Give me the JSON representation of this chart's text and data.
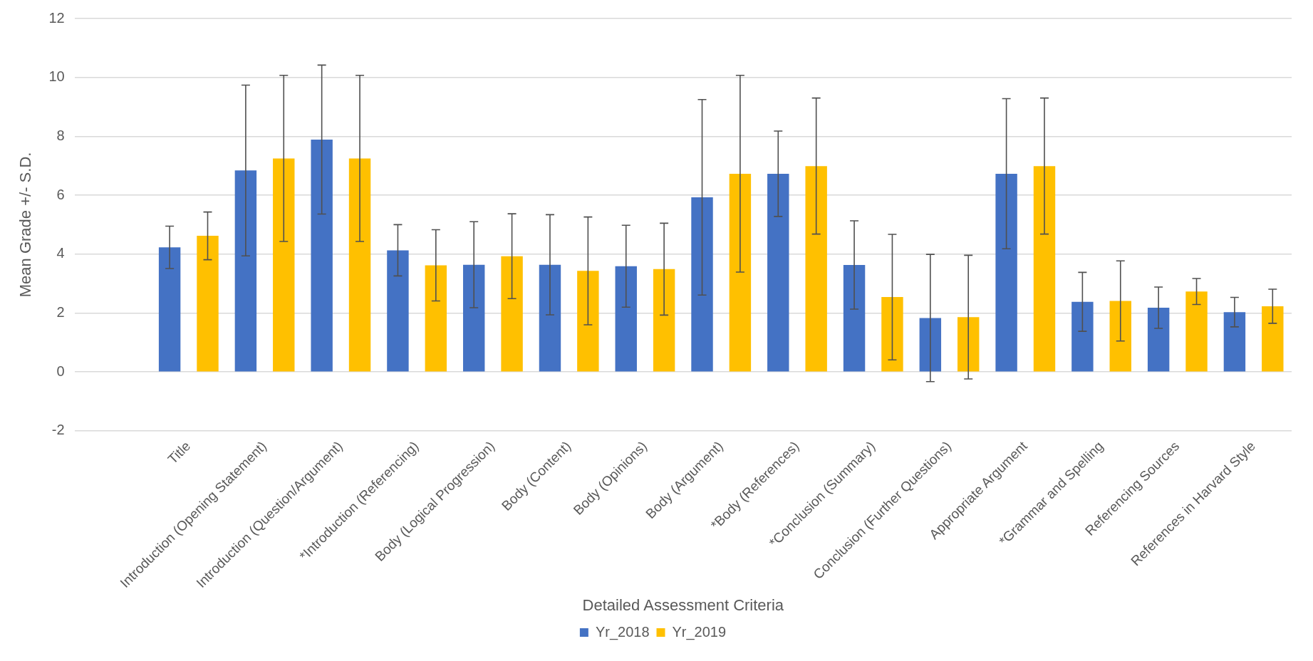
{
  "chart_data": {
    "type": "bar",
    "xlabel": "Detailed Assessment Criteria",
    "ylabel": "Mean Grade +/- S.D.",
    "categories": [
      null,
      "Title",
      "Introduction (Opening Statement)",
      "Introduction (Question/Argument)",
      "*Introduction (Referencing)",
      "Body (Logical Progression)",
      "Body (Content)",
      "Body (Opinions)",
      "Body (Argument)",
      "*Body (References)",
      "*Conclusion (Summary)",
      "Conclusion (Further Questions)",
      "Appropriate Argument",
      "*Grammar and Spelling",
      "Referencing Sources",
      "References in Harvard Style"
    ],
    "series": [
      {
        "name": "Yr_2018",
        "color": "#4472c4",
        "values": [
          null,
          4.23,
          6.84,
          7.89,
          4.13,
          3.64,
          3.64,
          3.59,
          5.93,
          6.73,
          3.63,
          1.83,
          6.73,
          2.38,
          2.18,
          2.03
        ],
        "errors": [
          null,
          0.72,
          2.9,
          2.53,
          0.87,
          1.46,
          1.7,
          1.39,
          3.32,
          1.45,
          1.5,
          2.16,
          2.55,
          1.0,
          0.7,
          0.5
        ]
      },
      {
        "name": "Yr_2019",
        "color": "#ffc000",
        "values": [
          null,
          4.62,
          7.25,
          7.25,
          3.62,
          3.93,
          3.43,
          3.49,
          6.73,
          6.99,
          2.54,
          1.86,
          6.99,
          2.41,
          2.73,
          2.23
        ],
        "errors": [
          null,
          0.81,
          2.82,
          2.82,
          1.21,
          1.44,
          1.83,
          1.56,
          3.34,
          2.31,
          2.13,
          2.1,
          2.31,
          1.36,
          0.44,
          0.58
        ]
      }
    ],
    "ylim": [
      -2,
      12
    ],
    "yticks": [
      -2,
      0,
      2,
      4,
      6,
      8,
      10,
      12
    ],
    "grid": "y",
    "legend": "bottom"
  }
}
